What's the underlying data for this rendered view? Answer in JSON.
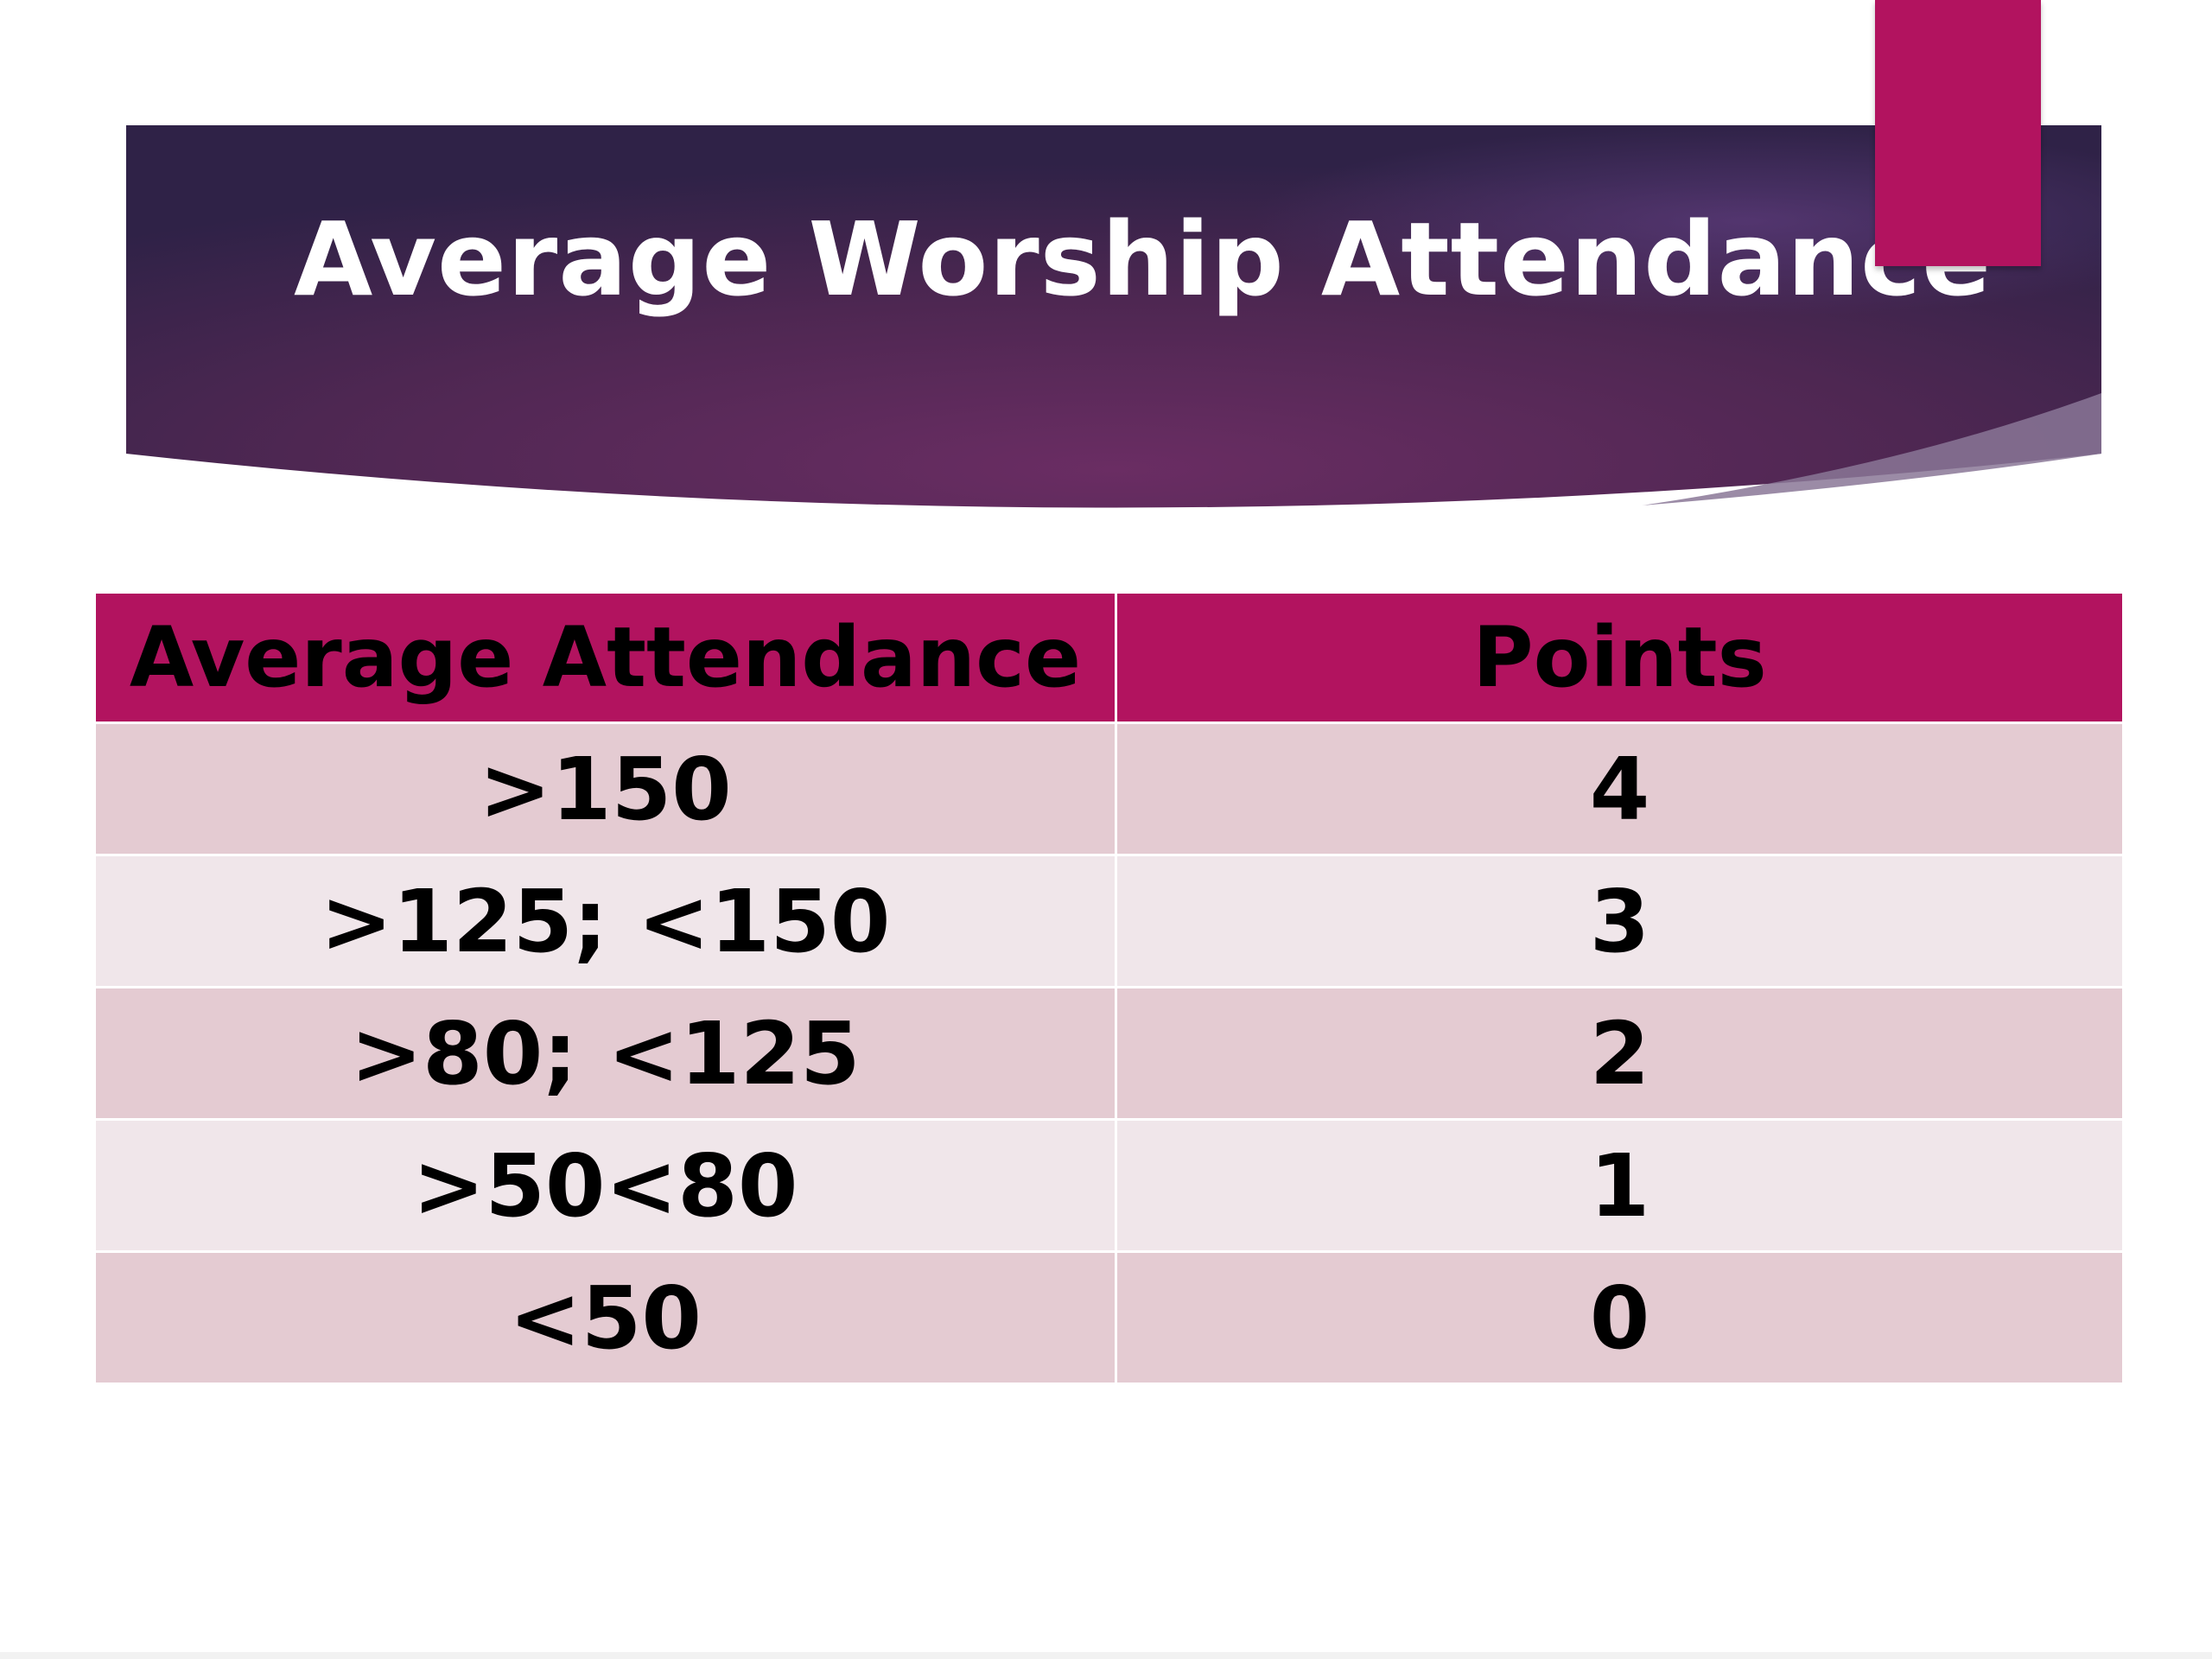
{
  "slide": {
    "title": "Average Worship Attendance",
    "colors": {
      "banner_dark": "#2f2247",
      "banner_mid": "#6a2d63",
      "accent": "#b2135f",
      "row_alt_1": "#e4cbd2",
      "row_alt_2": "#f0e6ea"
    }
  },
  "table": {
    "headers": [
      "Average Attendance",
      "Points"
    ],
    "rows": [
      [
        ">150",
        "4"
      ],
      [
        ">125; <150",
        "3"
      ],
      [
        ">80; <125",
        "2"
      ],
      [
        ">50<80",
        "1"
      ],
      [
        "<50",
        "0"
      ]
    ]
  }
}
